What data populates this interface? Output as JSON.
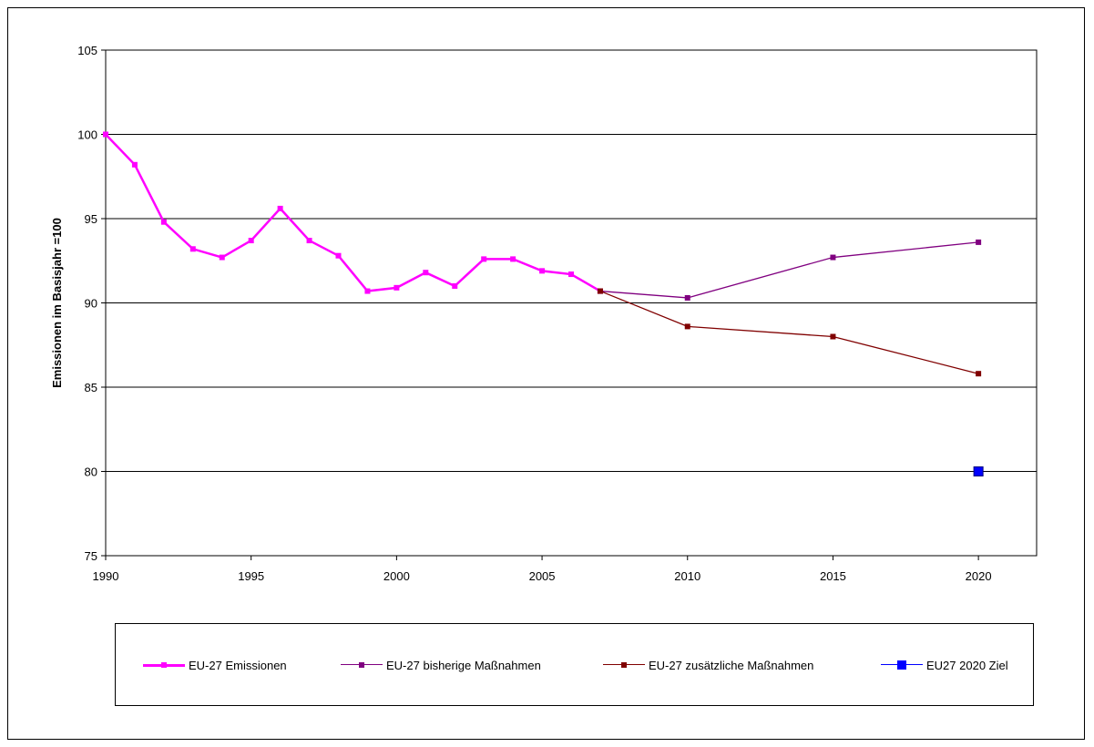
{
  "chart_data": {
    "type": "line",
    "ylabel": "Emissionen im Basisjahr =100",
    "xlabel": "",
    "ylim": [
      75,
      105
    ],
    "yticks": [
      75,
      80,
      85,
      90,
      95,
      100,
      105
    ],
    "xlim": [
      1990,
      2022
    ],
    "xticks": [
      1990,
      1995,
      2000,
      2005,
      2010,
      2015,
      2020
    ],
    "grid": "horizontal major gridlines",
    "legend_position": "bottom",
    "series": [
      {
        "name": "EU-27 Emissionen",
        "color": "#ff00ff",
        "marker": "square",
        "x": [
          1990,
          1991,
          1992,
          1993,
          1994,
          1995,
          1996,
          1997,
          1998,
          1999,
          2000,
          2001,
          2002,
          2003,
          2004,
          2005,
          2006,
          2007
        ],
        "y": [
          100.0,
          98.2,
          94.8,
          93.2,
          92.7,
          93.7,
          95.6,
          93.7,
          92.8,
          90.7,
          90.9,
          91.8,
          91.0,
          92.6,
          92.6,
          91.9,
          91.7,
          90.7
        ]
      },
      {
        "name": "EU-27 bisherige Maßnahmen",
        "color": "#800080",
        "marker": "square",
        "x": [
          2007,
          2010,
          2015,
          2020
        ],
        "y": [
          90.7,
          90.3,
          92.7,
          93.6
        ]
      },
      {
        "name": "EU-27 zusätzliche Maßnahmen",
        "color": "#800000",
        "marker": "square",
        "x": [
          2007,
          2010,
          2015,
          2020
        ],
        "y": [
          90.7,
          88.6,
          88.0,
          85.8
        ]
      },
      {
        "name": "EU27 2020 Ziel",
        "color": "#0000ff",
        "marker": "square",
        "x": [
          2020
        ],
        "y": [
          80.0
        ]
      }
    ]
  }
}
